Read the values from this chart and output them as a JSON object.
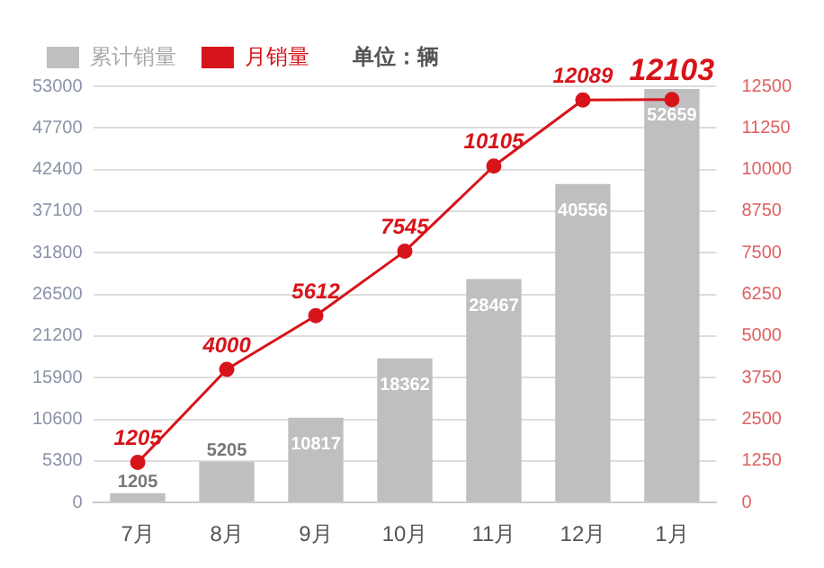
{
  "chart_data": {
    "type": "bar",
    "categories": [
      "7月",
      "8月",
      "9月",
      "10月",
      "11月",
      "12月",
      "1月"
    ],
    "series": [
      {
        "name": "累计销量",
        "color": "#bfbfbf",
        "values": [
          1205,
          5205,
          10817,
          18362,
          28467,
          40556,
          52659
        ]
      },
      {
        "name": "月销量",
        "type": "line",
        "axis": "y2",
        "color": "#d7141a",
        "marker": "circle",
        "values": [
          1205,
          4000,
          5612,
          7545,
          10105,
          12089,
          12103
        ]
      }
    ],
    "ylim": [
      0,
      53000
    ],
    "yticks": [
      0,
      5300,
      10600,
      15900,
      21200,
      26500,
      31800,
      37100,
      42400,
      47700,
      53000
    ],
    "y2lim": [
      0,
      12500
    ],
    "y2ticks": [
      0,
      1250,
      2500,
      3750,
      5000,
      6250,
      7500,
      8750,
      10000,
      11250,
      12500
    ],
    "grid": "y",
    "legend": "top",
    "data_labels": true,
    "annotations": [
      "单位：辆"
    ]
  }
}
